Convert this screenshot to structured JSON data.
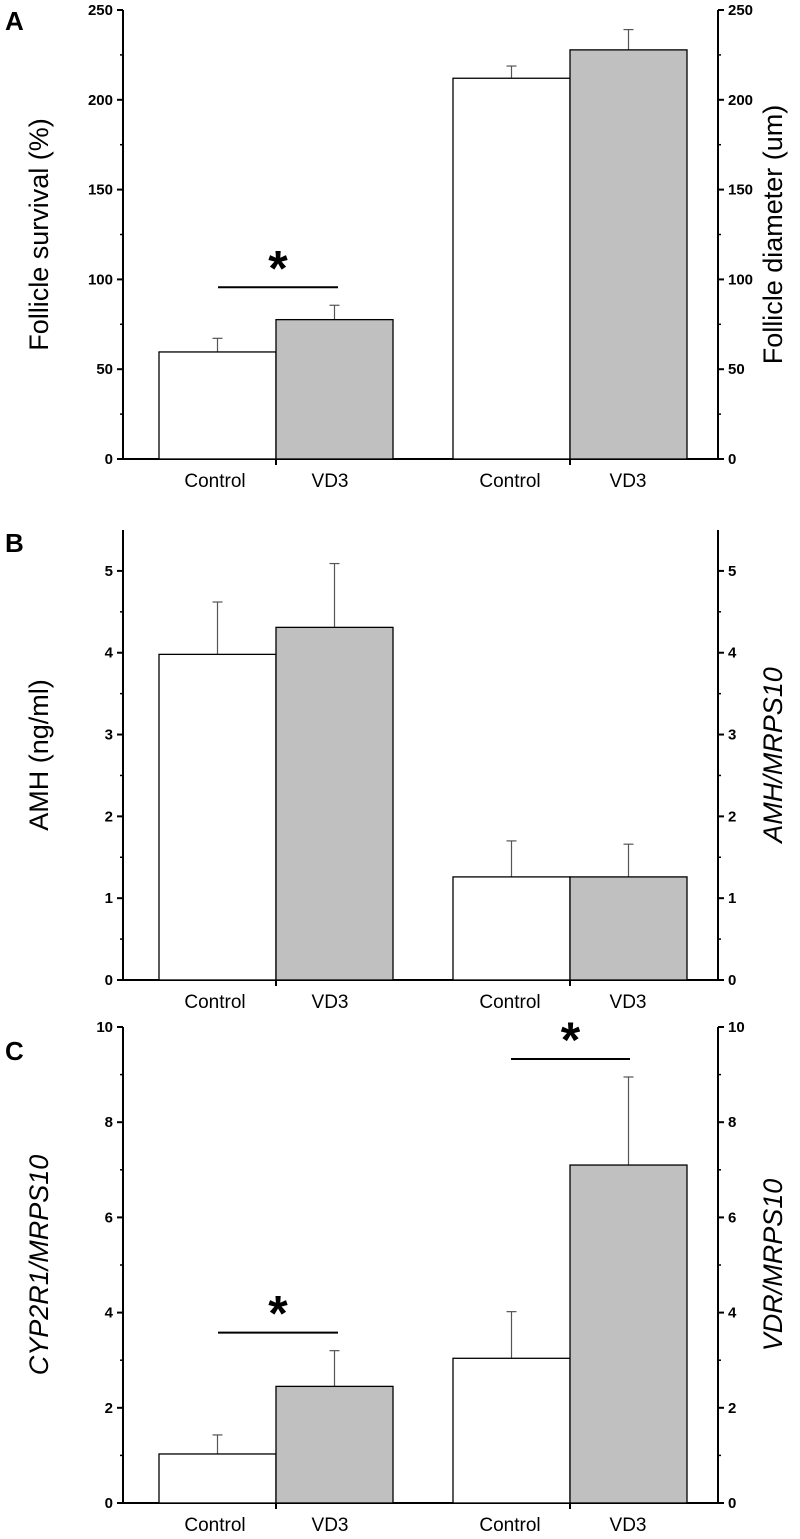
{
  "colors": {
    "control": "#ffffff",
    "vd3": "#c0c0c0",
    "stroke": "#000000",
    "errorbar": "#555555"
  },
  "chart_data": [
    {
      "type": "bar",
      "panel": "A",
      "left_axis": {
        "label": "Follicle survival (%)",
        "italic": false,
        "ylim": [
          0,
          250
        ],
        "ticks": [
          0,
          50,
          100,
          150,
          200,
          250
        ]
      },
      "right_axis": {
        "label": "Follicle diameter (um)",
        "italic": false,
        "ylim": [
          0,
          250
        ],
        "ticks": [
          0,
          50,
          100,
          150,
          200,
          250
        ]
      },
      "groups": [
        {
          "axis": "left",
          "categories": [
            "Control",
            "VD3"
          ],
          "values": [
            59.6,
            77.6
          ],
          "errors": [
            7.6,
            8.0
          ],
          "significance": "*"
        },
        {
          "axis": "right",
          "categories": [
            "Control",
            "VD3"
          ],
          "values": [
            212.0,
            227.8
          ],
          "errors": [
            6.8,
            11.3
          ],
          "significance": ""
        }
      ]
    },
    {
      "type": "bar",
      "panel": "B",
      "left_axis": {
        "label": "AMH (ng/ml)",
        "italic": false,
        "ylim": [
          0,
          5.5
        ],
        "ticks": [
          0,
          1,
          2,
          3,
          4,
          5
        ]
      },
      "right_axis": {
        "label": "AMH/MRPS10",
        "italic": true,
        "ylim": [
          0,
          5.5
        ],
        "ticks": [
          0,
          1,
          2,
          3,
          4,
          5
        ]
      },
      "groups": [
        {
          "axis": "left",
          "categories": [
            "Control",
            "VD3"
          ],
          "values": [
            3.98,
            4.31
          ],
          "errors": [
            0.64,
            0.78
          ],
          "significance": ""
        },
        {
          "axis": "right",
          "categories": [
            "Control",
            "VD3"
          ],
          "values": [
            1.26,
            1.26
          ],
          "errors": [
            0.44,
            0.4
          ],
          "significance": ""
        }
      ]
    },
    {
      "type": "bar",
      "panel": "C",
      "left_axis": {
        "label": "CYP2R1/MRPS10",
        "italic": true,
        "ylim": [
          0,
          10
        ],
        "ticks": [
          0,
          2,
          4,
          6,
          8,
          10
        ]
      },
      "right_axis": {
        "label": "VDR/MRPS10",
        "italic": true,
        "ylim": [
          0,
          10
        ],
        "ticks": [
          0,
          2,
          4,
          6,
          8,
          10
        ]
      },
      "groups": [
        {
          "axis": "left",
          "categories": [
            "Control",
            "VD3"
          ],
          "values": [
            1.03,
            2.45
          ],
          "errors": [
            0.4,
            0.75
          ],
          "significance": "*"
        },
        {
          "axis": "right",
          "categories": [
            "Control",
            "VD3"
          ],
          "values": [
            3.04,
            7.1
          ],
          "errors": [
            0.98,
            1.85
          ],
          "significance": "*"
        }
      ]
    }
  ]
}
